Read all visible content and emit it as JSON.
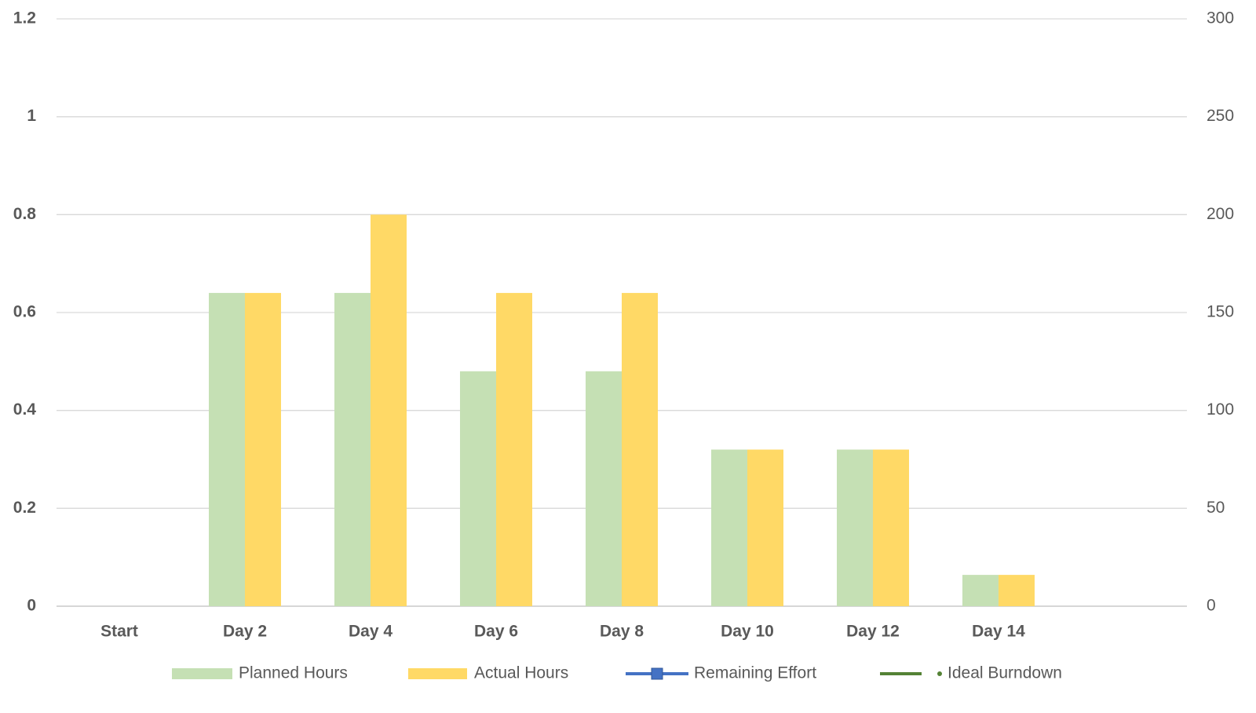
{
  "chart_data": {
    "type": "bar",
    "categories": [
      "Start",
      "Day 2",
      "Day 4",
      "Day 6",
      "Day 8",
      "Day 10",
      "Day 12",
      "Day 14",
      null
    ],
    "series": [
      {
        "name": "Planned Hours",
        "color": "#c5e0b4",
        "axis": "y2",
        "type": "bar",
        "values": [
          null,
          160,
          160,
          120,
          120,
          80,
          80,
          16,
          null
        ]
      },
      {
        "name": "Actual Hours",
        "color": "#ffd966",
        "axis": "y2",
        "type": "bar",
        "values": [
          null,
          160,
          200,
          160,
          160,
          80,
          80,
          16,
          null
        ]
      },
      {
        "name": "Remaining Effort",
        "color": "#4472c4",
        "axis": "y",
        "type": "line",
        "values": [
          null,
          null,
          null,
          null,
          null,
          null,
          null,
          null,
          null
        ]
      },
      {
        "name": "Ideal Burndown",
        "color": "#548235",
        "axis": "y",
        "type": "line",
        "values": [
          null,
          null,
          null,
          null,
          null,
          null,
          null,
          null,
          null
        ]
      }
    ],
    "ylim": [
      0,
      1.2
    ],
    "yticks": [
      0,
      0.2,
      0.4,
      0.6,
      0.8,
      1,
      1.2
    ],
    "y2lim": [
      0,
      300
    ],
    "y2ticks": [
      0,
      50,
      100,
      150,
      200,
      250,
      300
    ],
    "grid": true,
    "legend": "bottom"
  }
}
